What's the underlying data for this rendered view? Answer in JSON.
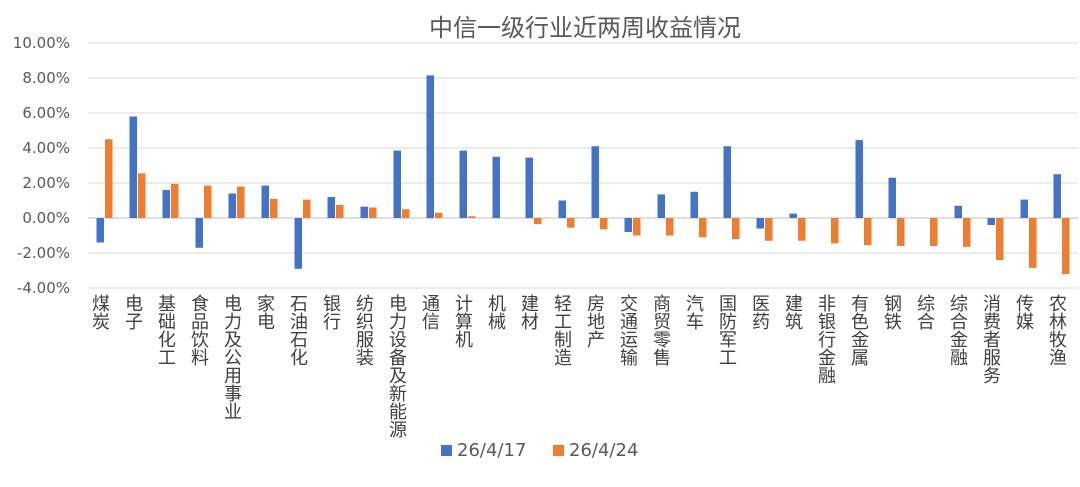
{
  "chart_data": {
    "type": "bar",
    "title": "中信一级行业近两周收益情况",
    "xlabel": "",
    "ylabel": "",
    "ylim": [
      -4,
      10
    ],
    "ytick_step": 2,
    "ytick_labels": [
      "10.00%",
      "8.00%",
      "6.00%",
      "4.00%",
      "2.00%",
      "0.00%",
      "-2.00%",
      "-4.00%"
    ],
    "grid": true,
    "legend_position": "bottom",
    "categories": [
      "煤炭",
      "电子",
      "基础化工",
      "食品饮料",
      "电力及公用事业",
      "家电",
      "石油石化",
      "银行",
      "纺织服装",
      "电力设备及新能源",
      "通信",
      "计算机",
      "机械",
      "建材",
      "轻工制造",
      "房地产",
      "交通运输",
      "商贸零售",
      "汽车",
      "国防军工",
      "医药",
      "建筑",
      "非银行金融",
      "有色金属",
      "钢铁",
      "综合",
      "综合金融",
      "消费者服务",
      "传媒",
      "农林牧渔"
    ],
    "series": [
      {
        "name": "26/4/17",
        "color": "#4472C4",
        "values": [
          -1.4,
          5.8,
          1.6,
          -1.7,
          1.4,
          1.85,
          -2.9,
          1.2,
          0.65,
          3.85,
          8.15,
          3.85,
          3.5,
          3.45,
          1.0,
          4.1,
          -0.8,
          1.35,
          1.5,
          4.1,
          -0.6,
          0.25,
          0.0,
          4.45,
          2.3,
          0.0,
          0.7,
          -0.4,
          1.05,
          2.5
        ]
      },
      {
        "name": "26/4/24",
        "color": "#ED7D31",
        "values": [
          4.5,
          2.55,
          1.95,
          1.85,
          1.8,
          1.1,
          1.05,
          0.75,
          0.6,
          0.5,
          0.3,
          0.1,
          0.0,
          -0.35,
          -0.55,
          -0.65,
          -1.0,
          -1.0,
          -1.1,
          -1.2,
          -1.3,
          -1.3,
          -1.45,
          -1.55,
          -1.6,
          -1.6,
          -1.65,
          -2.4,
          -2.85,
          -3.2
        ]
      }
    ]
  }
}
